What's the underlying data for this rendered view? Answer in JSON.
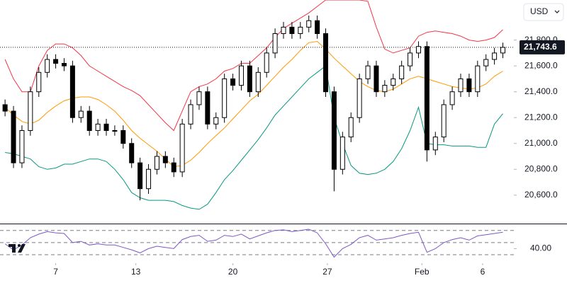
{
  "chart_data": {
    "type": "candlestick",
    "currency": "USD",
    "ylim": [
      20380,
      22110
    ],
    "yticks": [
      {
        "value": 21800,
        "label": "21,800.0"
      },
      {
        "value": 21600,
        "label": "21,600.0"
      },
      {
        "value": 21400,
        "label": "21,400.0"
      },
      {
        "value": 21200,
        "label": "21,200.0"
      },
      {
        "value": 21000,
        "label": "21,000.0"
      },
      {
        "value": 20800,
        "label": "20,800.0"
      },
      {
        "value": 20600,
        "label": "20,600.0"
      }
    ],
    "last_price": {
      "value": 21743.6,
      "label": "21,743.6"
    },
    "xlim": [
      -0.6,
      60.3
    ],
    "xticks": [
      {
        "value": 6,
        "label": "7"
      },
      {
        "value": 15.5,
        "label": "13"
      },
      {
        "value": 27,
        "label": "20"
      },
      {
        "value": 38.2,
        "label": "27"
      },
      {
        "value": 49.4,
        "label": "Feb"
      },
      {
        "value": 56.6,
        "label": "6"
      }
    ],
    "up_color": "#ffffff",
    "down_color": "#000000",
    "open": [
      21300,
      21250,
      20850,
      21100,
      21400,
      21550,
      21650,
      21620,
      21600,
      21200,
      21250,
      21100,
      21150,
      21100,
      21100,
      21000,
      20850,
      20650,
      20800,
      20900,
      20850,
      20780,
      21150,
      21300,
      21400,
      21150,
      21200,
      21500,
      21450,
      21600,
      21400,
      21550,
      21700,
      21850,
      21900,
      21850,
      21900,
      21950,
      21850,
      21400,
      20800,
      21050,
      21200,
      21500,
      21600,
      21400,
      21450,
      21500,
      21600,
      21700,
      21750,
      20950,
      21050,
      21300,
      21400,
      21500,
      21400,
      21600,
      21650,
      21700
    ],
    "high": [
      21340,
      21290,
      21140,
      21440,
      21590,
      21690,
      21690,
      21660,
      21640,
      21290,
      21290,
      21190,
      21190,
      21140,
      21140,
      21040,
      20890,
      20840,
      20940,
      20940,
      20890,
      21190,
      21340,
      21440,
      21440,
      21240,
      21540,
      21540,
      21640,
      21640,
      21590,
      21740,
      21890,
      21940,
      21940,
      21940,
      21990,
      21990,
      21890,
      21440,
      21090,
      21240,
      21540,
      21640,
      21640,
      21490,
      21540,
      21640,
      21740,
      21790,
      21790,
      21090,
      21340,
      21440,
      21540,
      21540,
      21640,
      21690,
      21740,
      21780
    ],
    "low": [
      21210,
      20810,
      20810,
      21060,
      21360,
      21510,
      21580,
      21560,
      21160,
      21160,
      21060,
      21060,
      21060,
      21060,
      20960,
      20810,
      20560,
      20610,
      20760,
      20810,
      20740,
      20740,
      21110,
      21260,
      21110,
      21110,
      21160,
      21410,
      21410,
      21360,
      21360,
      21510,
      21660,
      21810,
      21810,
      21810,
      21860,
      21810,
      21360,
      20630,
      20760,
      21010,
      21160,
      21460,
      21360,
      21360,
      21410,
      21460,
      21560,
      21660,
      20860,
      20910,
      21010,
      21260,
      21360,
      21360,
      21360,
      21560,
      21610,
      21660
    ],
    "close": [
      21250,
      20850,
      21100,
      21400,
      21550,
      21650,
      21620,
      21600,
      21200,
      21250,
      21100,
      21150,
      21100,
      21100,
      21000,
      20850,
      20650,
      20800,
      20900,
      20850,
      20780,
      21150,
      21300,
      21400,
      21150,
      21200,
      21500,
      21450,
      21600,
      21400,
      21550,
      21700,
      21850,
      21900,
      21850,
      21900,
      21950,
      21850,
      21400,
      20800,
      21050,
      21200,
      21500,
      21600,
      21400,
      21450,
      21500,
      21600,
      21700,
      21750,
      20950,
      21050,
      21300,
      21400,
      21500,
      21400,
      21600,
      21650,
      21700,
      21743.6
    ],
    "bands": {
      "upper": {
        "color": "#f23645",
        "values": [
          21650,
          21500,
          21400,
          21400,
          21600,
          21720,
          21770,
          21770,
          21740,
          21680,
          21600,
          21560,
          21520,
          21480,
          21440,
          21410,
          21370,
          21300,
          21230,
          21160,
          21100,
          21250,
          21400,
          21440,
          21460,
          21500,
          21560,
          21580,
          21620,
          21620,
          21680,
          21740,
          21820,
          21890,
          21930,
          21970,
          22010,
          22060,
          22110,
          22110,
          22110,
          22110,
          22110,
          22100,
          21900,
          21730,
          21700,
          21720,
          21740,
          21830,
          21860,
          21870,
          21860,
          21850,
          21830,
          21800,
          21790,
          21800,
          21820,
          21880
        ]
      },
      "middle": {
        "color": "#ff9800",
        "values": [
          21280,
          21220,
          21170,
          21150,
          21180,
          21240,
          21290,
          21330,
          21350,
          21360,
          21360,
          21340,
          21300,
          21250,
          21180,
          21100,
          21040,
          20990,
          20940,
          20880,
          20820,
          20830,
          20870,
          20930,
          21000,
          21060,
          21120,
          21190,
          21260,
          21330,
          21380,
          21450,
          21520,
          21590,
          21650,
          21720,
          21780,
          21790,
          21730,
          21660,
          21600,
          21540,
          21480,
          21440,
          21410,
          21400,
          21420,
          21460,
          21500,
          21520,
          21500,
          21480,
          21460,
          21440,
          21430,
          21420,
          21430,
          21460,
          21520,
          21560
        ]
      },
      "lower": {
        "color": "#089981",
        "values": [
          20930,
          20920,
          20900,
          20880,
          20820,
          20800,
          20810,
          20840,
          20840,
          20860,
          20880,
          20880,
          20860,
          20800,
          20720,
          20620,
          20580,
          20560,
          20560,
          20560,
          20550,
          20520,
          20500,
          20490,
          20530,
          20620,
          20720,
          20790,
          20870,
          20950,
          21030,
          21120,
          21220,
          21290,
          21360,
          21430,
          21500,
          21550,
          21600,
          21200,
          21000,
          20830,
          20770,
          20760,
          20770,
          20800,
          20860,
          20960,
          21100,
          21280,
          21000,
          20990,
          20990,
          20980,
          20980,
          20980,
          20970,
          20970,
          21150,
          21230
        ]
      }
    },
    "rsi": {
      "color": "#7e57c2",
      "ylim": [
        16,
        79
      ],
      "levels": [
        30,
        50,
        70
      ],
      "yticks": [
        {
          "value": 40,
          "label": "40.00"
        }
      ],
      "values": [
        48,
        38,
        46,
        58,
        64,
        68,
        66,
        65,
        50,
        52,
        46,
        48,
        46,
        46,
        42,
        38,
        33,
        40,
        44,
        42,
        40,
        55,
        60,
        62,
        52,
        54,
        62,
        60,
        64,
        56,
        61,
        66,
        70,
        71,
        68,
        70,
        72,
        66,
        48,
        26,
        40,
        47,
        58,
        62,
        54,
        56,
        58,
        62,
        65,
        67,
        34,
        40,
        50,
        55,
        58,
        54,
        61,
        63,
        65,
        67
      ]
    }
  }
}
